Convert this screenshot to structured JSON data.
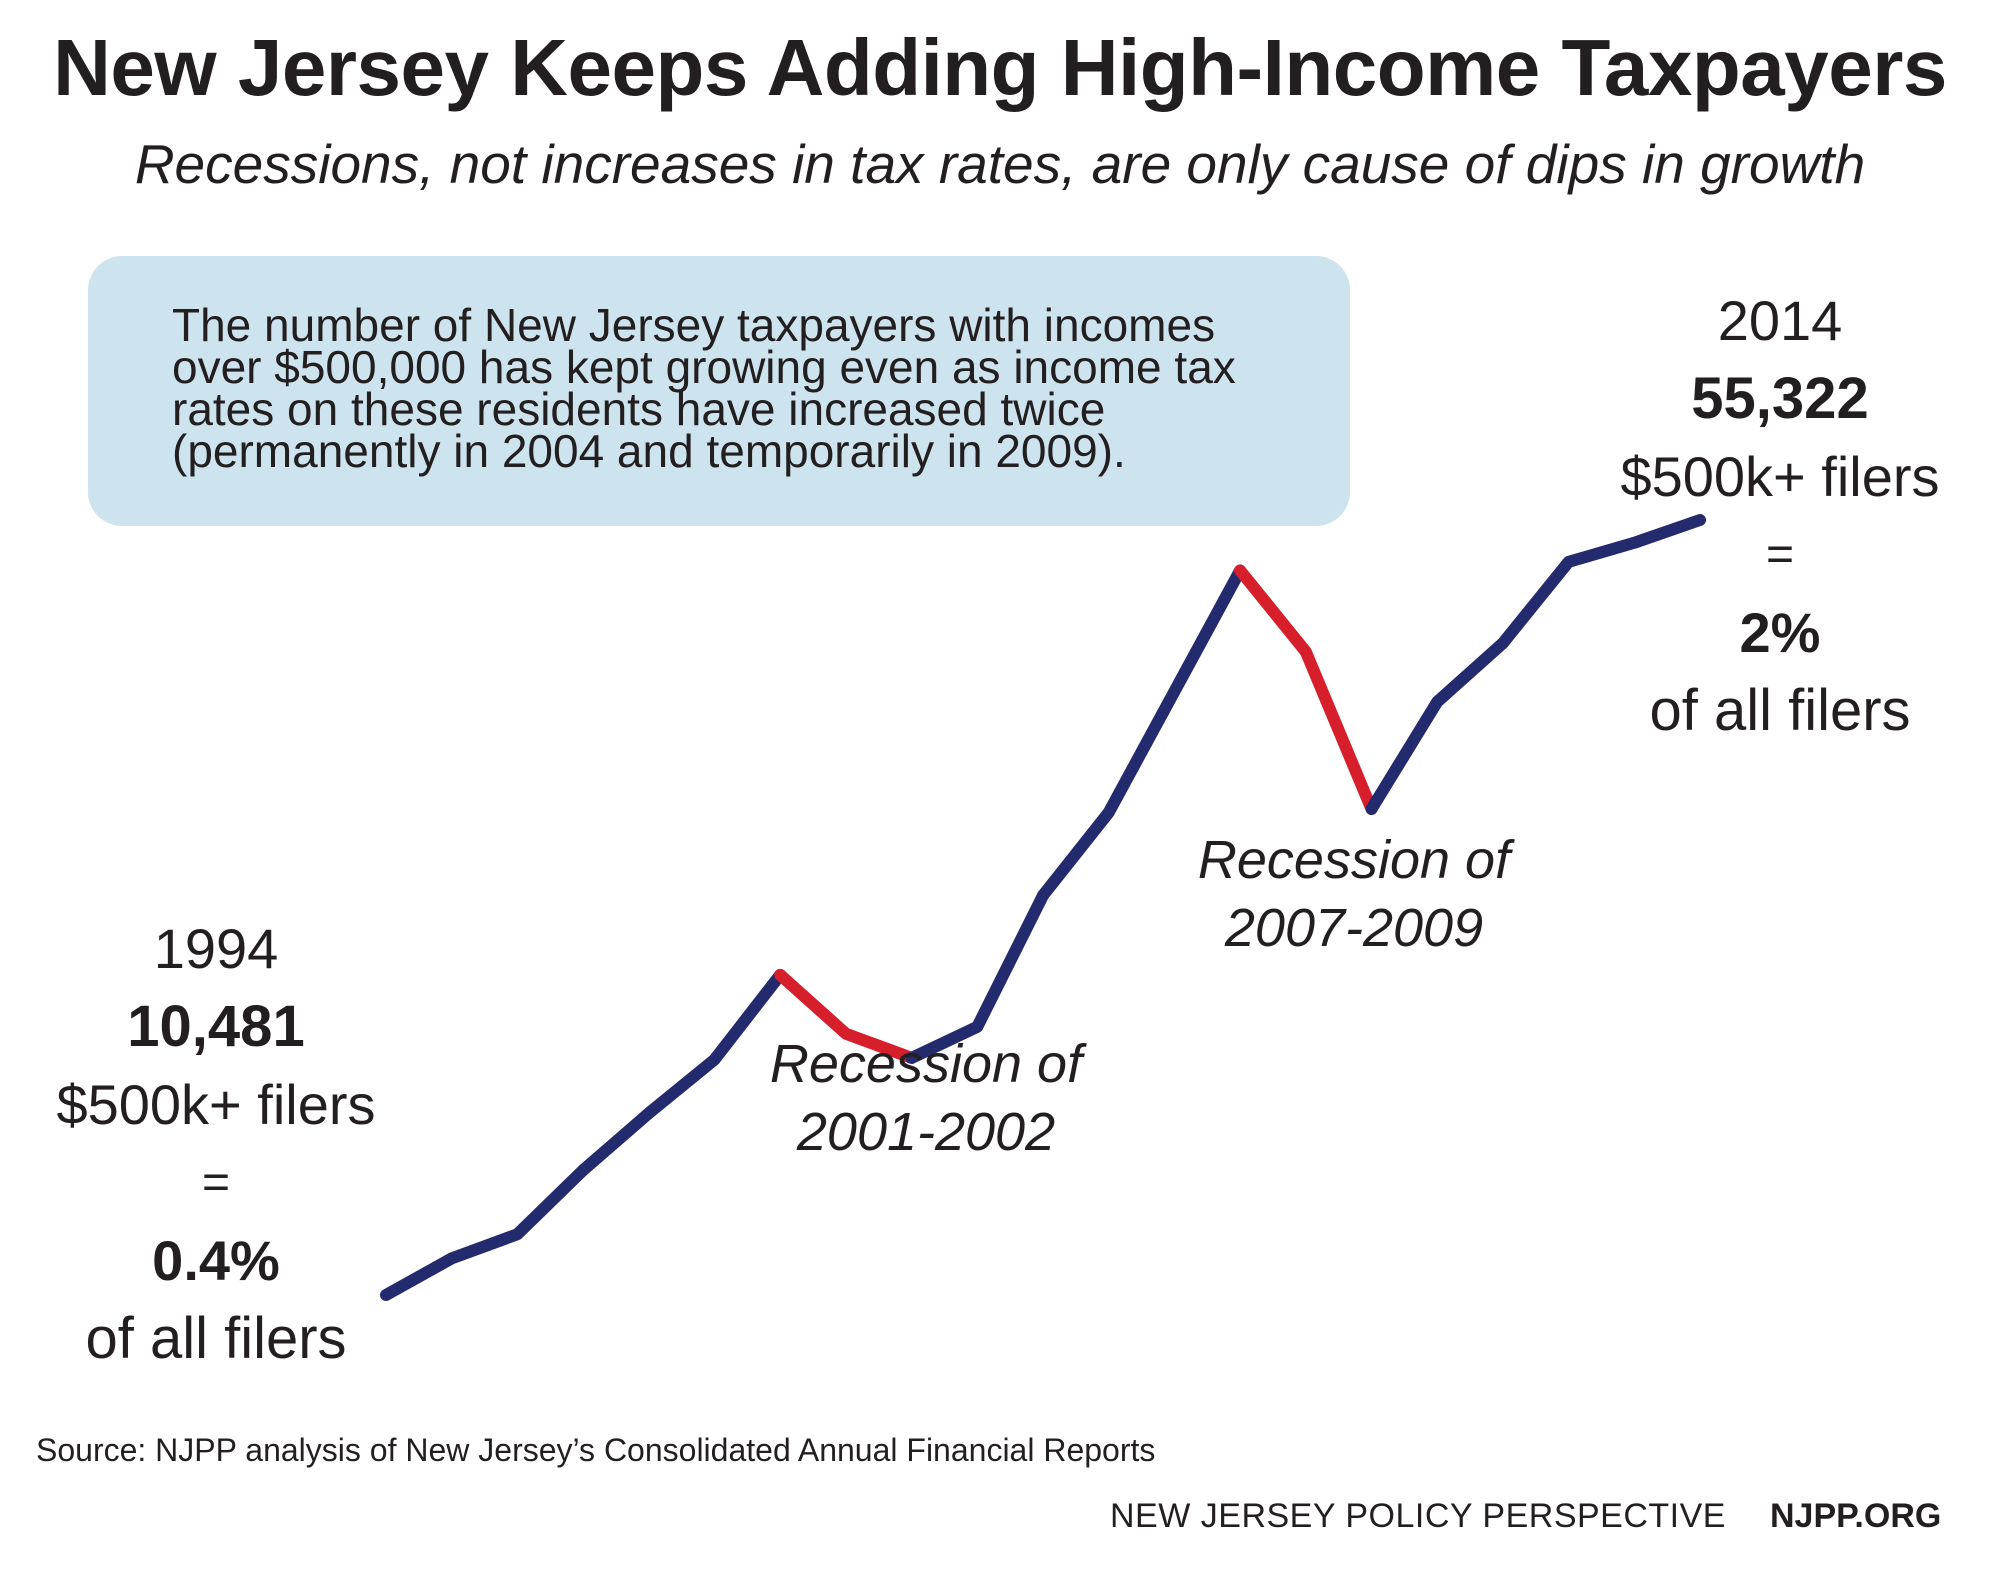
{
  "header": {
    "title": "New Jersey Keeps Adding High-Income Taxpayers",
    "subtitle": "Recessions, not increases in tax rates, are only cause of dips in growth"
  },
  "callout": {
    "text": "The number of New Jersey taxpayers with incomes over $500,000 has kept growing even as income tax rates on these residents have increased twice (permanently in 2004 and temporarily in 2009)."
  },
  "start_annotation": {
    "year": "1994",
    "count": "10,481",
    "label": "$500k+ filers",
    "equals": "=",
    "percent": "0.4%",
    "of_all": "of all filers"
  },
  "end_annotation": {
    "year": "2014",
    "count": "55,322",
    "label": "$500k+ filers",
    "equals": "=",
    "percent": "2%",
    "of_all": "of all filers"
  },
  "recessions": [
    {
      "line1": "Recession of",
      "line2": "2001-2002"
    },
    {
      "line1": "Recession of",
      "line2": "2007-2009"
    }
  ],
  "footer": {
    "source": "Source: NJPP analysis of New Jersey’s Consolidated Annual Financial Reports",
    "org_name": "NEW JERSEY POLICY PERSPECTIVE",
    "org_url": "NJPP.ORG"
  },
  "colors": {
    "growth": "#232a6e",
    "recession": "#d71f2c",
    "callout_bg": "#cde3ee"
  },
  "chart_data": {
    "type": "line",
    "title": "New Jersey Keeps Adding High-Income Taxpayers",
    "xlabel": "",
    "ylabel": "",
    "grid": false,
    "x": [
      1994,
      1995,
      1996,
      1997,
      1998,
      1999,
      2000,
      2001,
      2002,
      2003,
      2004,
      2005,
      2006,
      2007,
      2008,
      2009,
      2010,
      2011,
      2012,
      2013,
      2014
    ],
    "series": [
      {
        "values": [
          10481,
          12600,
          14000,
          17700,
          21000,
          24100,
          29000,
          25600,
          24200,
          26000,
          33600,
          38400,
          45400,
          52400,
          47700,
          38600,
          44800,
          48200,
          52900,
          54000,
          55322
        ]
      }
    ],
    "segments": [
      {
        "from": 1994,
        "to": 2000,
        "kind": "growth"
      },
      {
        "from": 2000,
        "to": 2002,
        "kind": "recession"
      },
      {
        "from": 2002,
        "to": 2007,
        "kind": "growth"
      },
      {
        "from": 2007,
        "to": 2009,
        "kind": "recession"
      },
      {
        "from": 2009,
        "to": 2014,
        "kind": "growth"
      }
    ],
    "ylim": [
      10481,
      55322
    ]
  }
}
